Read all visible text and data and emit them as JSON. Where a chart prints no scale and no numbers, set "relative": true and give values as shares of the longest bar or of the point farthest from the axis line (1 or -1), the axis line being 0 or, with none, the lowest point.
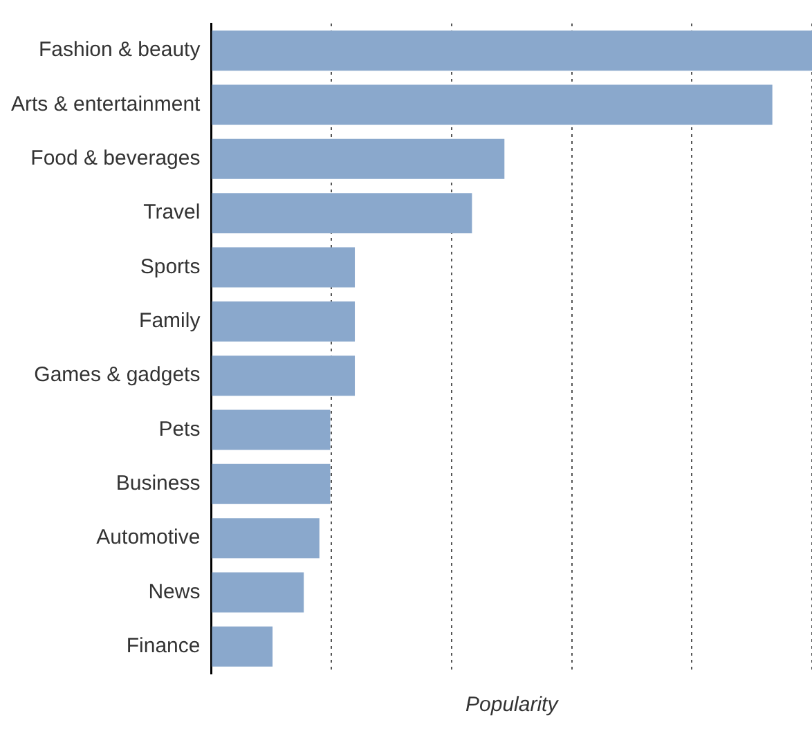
{
  "chart_data": {
    "type": "bar",
    "orientation": "horizontal",
    "relative": true,
    "xlabel": "Popularity",
    "categories": [
      "Fashion & beauty",
      "Arts & entertainment",
      "Food & beverages",
      "Travel",
      "Sports",
      "Family",
      "Games & gadgets",
      "Pets",
      "Business",
      "Automotive",
      "News",
      "Finance"
    ],
    "values": [
      1,
      0.934,
      0.488,
      0.434,
      0.239,
      0.239,
      0.239,
      0.198,
      0.198,
      0.18,
      0.154,
      0.102
    ],
    "color": "#8aa8cc",
    "grid": "x",
    "legend": false,
    "tick_labels": "y"
  }
}
